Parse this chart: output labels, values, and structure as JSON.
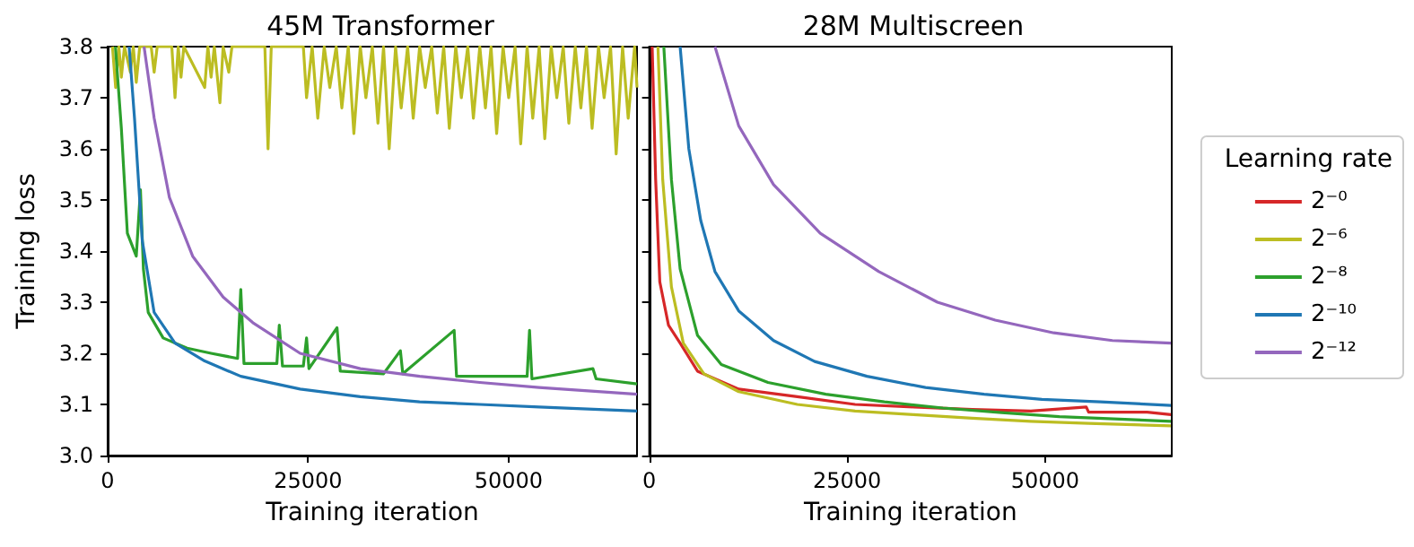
{
  "chart_data": [
    {
      "type": "line",
      "title": "45M Transformer",
      "xlabel": "Training iteration",
      "ylabel": "Training loss",
      "xlim": [
        0,
        66000
      ],
      "xticks": [
        0,
        25000,
        50000
      ],
      "ylim": [
        3.0,
        3.8
      ],
      "yticks": [
        {
          "value": 3.0,
          "label": "3.0"
        },
        3.1,
        3.2,
        3.3,
        3.4,
        3.5,
        3.6,
        3.7,
        3.8
      ],
      "legend": false,
      "series": [
        {
          "color": "#bcbd22",
          "x": [
            600,
            1000,
            1400,
            1710,
            2100,
            2830,
            3200,
            3570,
            4000,
            5430,
            5800,
            6180,
            8000,
            8400,
            8800,
            9150,
            9500,
            12100,
            12500,
            12900,
            13300,
            14000,
            14400,
            15100,
            15500,
            19600,
            20000,
            20400,
            24400,
            24800,
            25500,
            26200,
            27000,
            27700,
            28500,
            29200,
            30000,
            30700,
            31500,
            32200,
            33000,
            33700,
            34400,
            35100,
            35900,
            36600,
            37400,
            38100,
            38900,
            39600,
            40400,
            41100,
            41900,
            42600,
            43400,
            44100,
            44900,
            45600,
            46400,
            47100,
            47800,
            48500,
            49300,
            50000,
            50800,
            51500,
            52300,
            53000,
            53800,
            54500,
            55300,
            56000,
            56800,
            57500,
            58300,
            59000,
            59700,
            60400,
            61200,
            61900,
            62700,
            63400,
            64200,
            64900,
            65700,
            66000
          ],
          "values": [
            3.8,
            3.72,
            3.8,
            3.74,
            3.8,
            3.75,
            3.8,
            3.73,
            3.8,
            3.8,
            3.75,
            3.8,
            3.8,
            3.7,
            3.8,
            3.74,
            3.8,
            3.72,
            3.8,
            3.74,
            3.8,
            3.69,
            3.8,
            3.75,
            3.8,
            3.8,
            3.6,
            3.8,
            3.8,
            3.7,
            3.8,
            3.66,
            3.8,
            3.72,
            3.8,
            3.68,
            3.8,
            3.63,
            3.8,
            3.7,
            3.8,
            3.65,
            3.8,
            3.6,
            3.8,
            3.68,
            3.8,
            3.66,
            3.8,
            3.72,
            3.8,
            3.67,
            3.8,
            3.64,
            3.8,
            3.7,
            3.8,
            3.66,
            3.8,
            3.68,
            3.8,
            3.63,
            3.8,
            3.7,
            3.8,
            3.61,
            3.8,
            3.66,
            3.8,
            3.62,
            3.8,
            3.7,
            3.8,
            3.65,
            3.8,
            3.68,
            3.8,
            3.64,
            3.8,
            3.7,
            3.8,
            3.59,
            3.8,
            3.66,
            3.8,
            3.72
          ]
        },
        {
          "color": "#2ca02c",
          "x": [
            970,
            1710,
            2460,
            3570,
            4090,
            4460,
            5060,
            6920,
            9900,
            12900,
            16200,
            16600,
            17000,
            21100,
            21400,
            21800,
            24400,
            24800,
            25100,
            28600,
            29000,
            34400,
            36500,
            36800,
            43200,
            43500,
            52300,
            52600,
            52900,
            60500,
            60900,
            66000
          ],
          "values": [
            3.8,
            3.64,
            3.435,
            3.39,
            3.52,
            3.365,
            3.28,
            3.23,
            3.21,
            3.2,
            3.19,
            3.325,
            3.18,
            3.18,
            3.255,
            3.175,
            3.175,
            3.23,
            3.17,
            3.25,
            3.165,
            3.16,
            3.205,
            3.16,
            3.245,
            3.155,
            3.155,
            3.245,
            3.15,
            3.17,
            3.15,
            3.14
          ]
        },
        {
          "color": "#1f77b4",
          "x": [
            2680,
            3350,
            4320,
            5800,
            8400,
            12100,
            16600,
            24000,
            31500,
            38900,
            46400,
            53800,
            66000
          ],
          "values": [
            3.8,
            3.66,
            3.42,
            3.28,
            3.22,
            3.185,
            3.155,
            3.13,
            3.115,
            3.105,
            3.1,
            3.095,
            3.087
          ]
        },
        {
          "color": "#9467bd",
          "x": [
            4540,
            5800,
            7700,
            10600,
            14400,
            18100,
            24000,
            31500,
            38900,
            46400,
            53800,
            66000
          ],
          "values": [
            3.8,
            3.66,
            3.505,
            3.39,
            3.31,
            3.26,
            3.2,
            3.17,
            3.155,
            3.143,
            3.133,
            3.12
          ]
        }
      ]
    },
    {
      "type": "line",
      "title": "28M Multiscreen",
      "xlabel": "Training iteration",
      "xlim": [
        0,
        66000
      ],
      "xticks": [
        0,
        25000,
        50000
      ],
      "ylim": [
        3.0,
        3.8
      ],
      "yticks": [
        3.0,
        3.1,
        3.2,
        3.3,
        3.4,
        3.5,
        3.6,
        3.7,
        3.8
      ],
      "tick_labels": "x",
      "legend": "right",
      "legend_title": "Learning rate",
      "series": [
        {
          "name": "2⁻⁰",
          "color": "#d62728",
          "x": [
            370,
            810,
            1330,
            2430,
            3900,
            6100,
            11300,
            18700,
            26000,
            33400,
            40800,
            48200,
            55200,
            55500,
            62900,
            65900
          ],
          "values": [
            3.8,
            3.54,
            3.34,
            3.255,
            3.22,
            3.165,
            3.13,
            3.115,
            3.1,
            3.095,
            3.09,
            3.087,
            3.095,
            3.085,
            3.085,
            3.08
          ]
        },
        {
          "name": "2⁻⁶",
          "color": "#bcbd22",
          "x": [
            1100,
            1700,
            2800,
            4300,
            6900,
            11300,
            18700,
            26000,
            33400,
            40800,
            48200,
            55500,
            65900
          ],
          "values": [
            3.8,
            3.54,
            3.33,
            3.22,
            3.16,
            3.125,
            3.1,
            3.087,
            3.08,
            3.073,
            3.067,
            3.063,
            3.058
          ]
        },
        {
          "name": "2⁻⁸",
          "color": "#2ca02c",
          "x": [
            1840,
            2800,
            3900,
            6100,
            9100,
            15000,
            22300,
            29700,
            37100,
            44500,
            51800,
            65900
          ],
          "values": [
            3.8,
            3.54,
            3.365,
            3.235,
            3.178,
            3.143,
            3.12,
            3.105,
            3.093,
            3.084,
            3.076,
            3.067
          ]
        },
        {
          "name": "2⁻¹⁰",
          "color": "#1f77b4",
          "x": [
            3900,
            5000,
            6500,
            8300,
            11300,
            15700,
            20900,
            27500,
            34900,
            42300,
            49600,
            57000,
            65900
          ],
          "values": [
            3.8,
            3.6,
            3.46,
            3.36,
            3.283,
            3.225,
            3.184,
            3.155,
            3.133,
            3.12,
            3.11,
            3.105,
            3.098
          ]
        },
        {
          "name": "2⁻¹²",
          "color": "#9467bd",
          "x": [
            8300,
            11300,
            15700,
            21600,
            29000,
            36400,
            43700,
            51100,
            58500,
            65900
          ],
          "values": [
            3.8,
            3.645,
            3.53,
            3.435,
            3.36,
            3.3,
            3.265,
            3.24,
            3.225,
            3.22
          ]
        }
      ]
    }
  ]
}
